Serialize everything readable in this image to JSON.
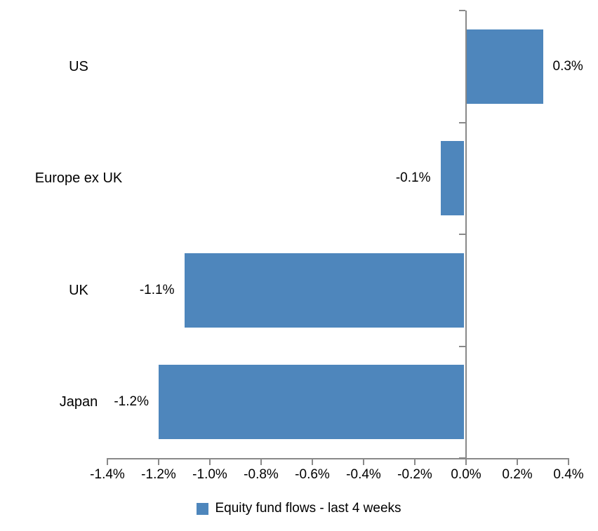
{
  "chart_data": {
    "type": "bar",
    "orientation": "horizontal",
    "title": "",
    "categories": [
      "US",
      "Europe ex UK",
      "UK",
      "Japan"
    ],
    "series": [
      {
        "name": "Equity fund flows - last 4 weeks",
        "values": [
          0.3,
          -0.1,
          -1.1,
          -1.2
        ],
        "labels": [
          "0.3%",
          "-0.1%",
          "-1.1%",
          "-1.2%"
        ]
      }
    ],
    "x_axis": {
      "min": -1.4,
      "max": 0.4,
      "step": 0.2,
      "tick_values": [
        -1.4,
        -1.2,
        -1.0,
        -0.8,
        -0.6,
        -0.4,
        -0.2,
        0.0,
        0.2,
        0.4
      ],
      "tick_labels": [
        "-1.4%",
        "-1.2%",
        "-1.0%",
        "-0.8%",
        "-0.6%",
        "-0.4%",
        "-0.2%",
        "0.0%",
        "0.2%",
        "0.4%"
      ]
    },
    "grid": false,
    "legend": {
      "position": "bottom",
      "entries": [
        {
          "label": "Equity fund flows - last 4 weeks",
          "color": "#4E86BC"
        }
      ]
    },
    "colors": {
      "bar": "#4E86BC",
      "axis": "#898989",
      "text": "#000000",
      "background": "#FFFFFF"
    }
  }
}
